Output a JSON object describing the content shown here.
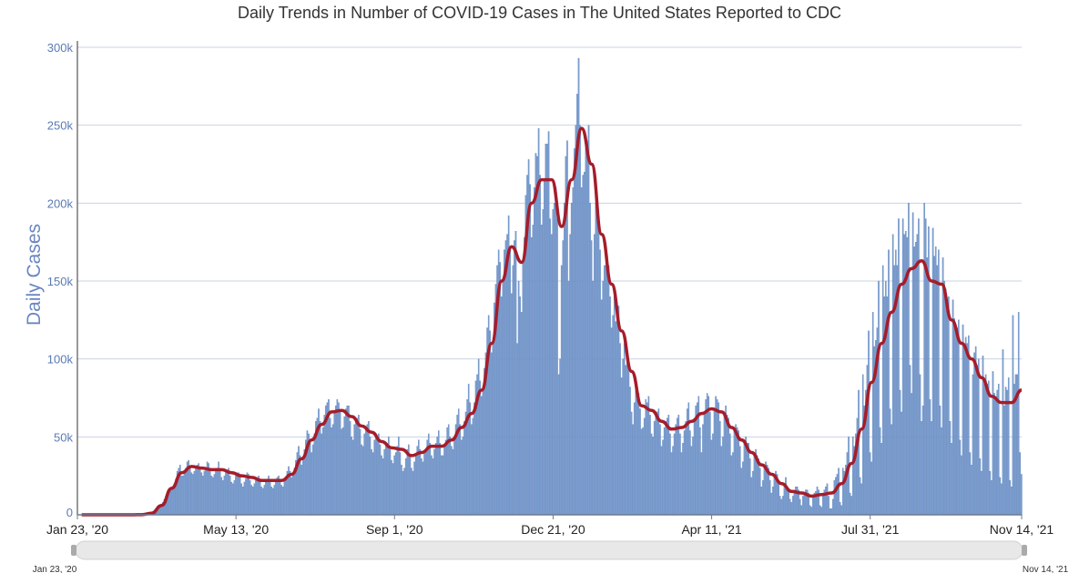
{
  "chart_data": {
    "type": "bar",
    "title": "Daily Trends in Number of COVID-19 Cases in The United States Reported to CDC",
    "ylabel": "Daily Cases",
    "xlabel": "",
    "ylim": [
      0,
      300000
    ],
    "yticks": [
      "0",
      "50k",
      "100k",
      "150k",
      "200k",
      "250k",
      "300k"
    ],
    "xrange": [
      "2020-01-23",
      "2021-11-14"
    ],
    "xticks": [
      {
        "date": "2020-01-23",
        "label": "Jan 23, '20"
      },
      {
        "date": "2020-05-13",
        "label": "May 13, '20"
      },
      {
        "date": "2020-09-01",
        "label": "Sep 1, '20"
      },
      {
        "date": "2020-12-21",
        "label": "Dec 21, '20"
      },
      {
        "date": "2021-04-11",
        "label": "Apr 11, '21"
      },
      {
        "date": "2021-07-31",
        "label": "Jul 31, '21"
      },
      {
        "date": "2021-11-14",
        "label": "Nov 14, '21"
      }
    ],
    "grid": true,
    "colors": {
      "bars": "#7c9fd0",
      "bar_edge": "#5a7fb8",
      "line": "#a51d2a"
    },
    "navigator": {
      "start_label": "Jan 23, '20",
      "end_label": "Nov 14, '21"
    },
    "series": [
      {
        "type": "bar",
        "unit": "thousands of cases",
        "start_date": "2020-01-23",
        "values": [
          0,
          0,
          0,
          0,
          0,
          0,
          0,
          0,
          0,
          0,
          0,
          0,
          0,
          0,
          0,
          0,
          0,
          0,
          0,
          0,
          0,
          0,
          0,
          0,
          0,
          0,
          0,
          0,
          0,
          0,
          0,
          0,
          0,
          0,
          0,
          0,
          0,
          0,
          0,
          0,
          0,
          0,
          0,
          0,
          0,
          0,
          1,
          1,
          1,
          0,
          1,
          1,
          2,
          2,
          3,
          4,
          4,
          5,
          6,
          7,
          8,
          10,
          12,
          14,
          16,
          17,
          17,
          18,
          20,
          23,
          28,
          30,
          32,
          25,
          25,
          28,
          30,
          34,
          35,
          31,
          27,
          26,
          28,
          31,
          32,
          33,
          30,
          27,
          25,
          28,
          30,
          34,
          33,
          28,
          25,
          24,
          26,
          29,
          30,
          34,
          28,
          24,
          22,
          25,
          28,
          28,
          30,
          25,
          21,
          20,
          22,
          25,
          27,
          27,
          24,
          20,
          18,
          21,
          23,
          27,
          26,
          22,
          19,
          18,
          20,
          22,
          24,
          25,
          22,
          18,
          17,
          19,
          21,
          23,
          25,
          21,
          18,
          17,
          19,
          22,
          24,
          25,
          22,
          19,
          18,
          22,
          24,
          28,
          31,
          28,
          24,
          26,
          30,
          35,
          40,
          44,
          38,
          32,
          36,
          42,
          48,
          54,
          52,
          46,
          40,
          45,
          52,
          60,
          62,
          68,
          60,
          52,
          56,
          64,
          70,
          72,
          74,
          62,
          56,
          58,
          66,
          70,
          74,
          72,
          66,
          55,
          56,
          63,
          68,
          70,
          70,
          60,
          50,
          48,
          58,
          62,
          62,
          64,
          55,
          45,
          44,
          52,
          56,
          58,
          60,
          50,
          42,
          40,
          48,
          52,
          50,
          52,
          45,
          38,
          36,
          42,
          46,
          46,
          50,
          42,
          35,
          33,
          38,
          40,
          44,
          50,
          40,
          32,
          28,
          30,
          36,
          42,
          45,
          38,
          30,
          28,
          34,
          38,
          44,
          48,
          42,
          36,
          34,
          40,
          42,
          48,
          52,
          46,
          38,
          36,
          42,
          46,
          50,
          54,
          46,
          38,
          38,
          44,
          48,
          56,
          58,
          50,
          44,
          42,
          50,
          58,
          64,
          68,
          58,
          48,
          50,
          60,
          66,
          74,
          84,
          72,
          58,
          62,
          72,
          86,
          90,
          100,
          86,
          76,
          82,
          94,
          104,
          120,
          128,
          118,
          104,
          112,
          136,
          148,
          160,
          170,
          162,
          140,
          150,
          170,
          176,
          180,
          192,
          170,
          142,
          160,
          176,
          182,
          110,
          150,
          140,
          130,
          162,
          178,
          205,
          218,
          228,
          212,
          178,
          186,
          210,
          232,
          230,
          248,
          218,
          186,
          196,
          214,
          238,
          238,
          246,
          190,
          180,
          196,
          200,
          210,
          190,
          90,
          100,
          160,
          176,
          200,
          230,
          240,
          150,
          180,
          200,
          210,
          235,
          250,
          270,
          293,
          250,
          210,
          218,
          220,
          236,
          240,
          250,
          200,
          176,
          150,
          180,
          200,
          192,
          190,
          170,
          138,
          150,
          160,
          160,
          166,
          160,
          140,
          120,
          128,
          140,
          124,
          130,
          134,
          110,
          88,
          100,
          110,
          96,
          102,
          96,
          82,
          66,
          58,
          72,
          80,
          74,
          78,
          68,
          55,
          56,
          62,
          74,
          72,
          76,
          64,
          52,
          50,
          60,
          66,
          66,
          68,
          58,
          44,
          48,
          56,
          60,
          62,
          64,
          52,
          40,
          44,
          52,
          58,
          62,
          64,
          52,
          40,
          46,
          54,
          60,
          68,
          72,
          54,
          44,
          50,
          62,
          70,
          72,
          76,
          56,
          40,
          58,
          66,
          74,
          78,
          76,
          66,
          48,
          52,
          68,
          76,
          74,
          72,
          60,
          44,
          50,
          64,
          70,
          64,
          62,
          52,
          38,
          40,
          54,
          58,
          56,
          54,
          44,
          30,
          34,
          46,
          50,
          46,
          46,
          36,
          24,
          28,
          38,
          42,
          38,
          36,
          30,
          18,
          22,
          30,
          34,
          32,
          30,
          22,
          14,
          18,
          24,
          28,
          26,
          22,
          12,
          10,
          12,
          20,
          24,
          18,
          16,
          10,
          8,
          12,
          16,
          18,
          18,
          16,
          10,
          6,
          12,
          14,
          16,
          16,
          14,
          6,
          5,
          12,
          14,
          15,
          18,
          16,
          6,
          5,
          14,
          16,
          18,
          20,
          12,
          4,
          4,
          10,
          22,
          24,
          26,
          30,
          8,
          6,
          30,
          28,
          32,
          40,
          50,
          14,
          12,
          50,
          44,
          52,
          62,
          80,
          24,
          20,
          90,
          70,
          80,
          96,
          118,
          40,
          34,
          130,
          108,
          112,
          120,
          150,
          56,
          46,
          160,
          140,
          150,
          140,
          170,
          68,
          58,
          180,
          160,
          170,
          160,
          190,
          80,
          66,
          190,
          180,
          182,
          178,
          200,
          96,
          78,
          194,
          172,
          175,
          180,
          190,
          90,
          60,
          70,
          200,
          190,
          165,
          185,
          74,
          60,
          184,
          166,
          172,
          160,
          170,
          70,
          56,
          165,
          150,
          145,
          136,
          140,
          60,
          46,
          138,
          126,
          122,
          120,
          125,
          48,
          38,
          122,
          108,
          114,
          110,
          115,
          40,
          32,
          90,
          104,
          108,
          96,
          100,
          36,
          28,
          102,
          84,
          90,
          84,
          86,
          28,
          22,
          92,
          78,
          76,
          80,
          84,
          24,
          20,
          106,
          70,
          82,
          80,
          88,
          22,
          18,
          128,
          84,
          90,
          90,
          130,
          40,
          26
        ]
      },
      {
        "type": "line",
        "unit": "thousands of cases (7-day average)",
        "start_date": "2020-01-23",
        "step_days": 7,
        "values": [
          0,
          0,
          0,
          0,
          0,
          0,
          0.1,
          1,
          6,
          17,
          27,
          31,
          30,
          29,
          29,
          27,
          25,
          24,
          22,
          22,
          22,
          26,
          36,
          48,
          58,
          66,
          67,
          63,
          57,
          53,
          47,
          43,
          42,
          38,
          40,
          44,
          44,
          48,
          56,
          65,
          80,
          110,
          150,
          172,
          162,
          200,
          215,
          215,
          185,
          215,
          248,
          225,
          180,
          148,
          118,
          92,
          70,
          67,
          60,
          55,
          56,
          60,
          65,
          68,
          66,
          56,
          48,
          40,
          32,
          26,
          20,
          15,
          14,
          12,
          13,
          14,
          20,
          33,
          55,
          85,
          110,
          130,
          148,
          158,
          163,
          150,
          148,
          125,
          110,
          100,
          88,
          76,
          72,
          72,
          80
        ]
      }
    ]
  }
}
